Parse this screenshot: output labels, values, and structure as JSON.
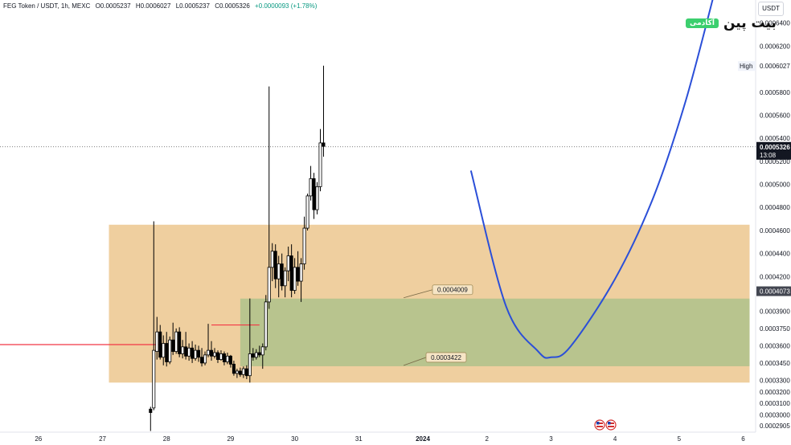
{
  "header": {
    "symbol": "FEG Token / USDT, 1h, MEXC",
    "open": "O0.0005237",
    "high": "H0.0006027",
    "low": "L0.0005237",
    "close": "C0.0005326",
    "change": "+0.0000093 (+1.78%)"
  },
  "brand": {
    "name": "بیت پین",
    "tag": "آکادمی"
  },
  "currency": "USDT",
  "colors": {
    "up": "#089981",
    "down": "#131722",
    "candle": "#000000",
    "supply_zone": "#efcf9f",
    "demand_zone": "#b8c48e",
    "projection": "#2b4fd8",
    "level_line": "#f23645",
    "label_box": "#f6e5c5",
    "label_border": "#a08c5a"
  },
  "chart_data": {
    "type": "candlestick",
    "title": "FEG Token / USDT, 1h, MEXC",
    "ylim": [
      0.000285,
      0.00066
    ],
    "x_ticks": [
      "26",
      "27",
      "28",
      "29",
      "30",
      "31",
      "2024",
      "2",
      "3",
      "4",
      "5",
      "6"
    ],
    "price_ticks": [
      "0.0006400",
      "0.0006200",
      "0.0005800",
      "0.0005600",
      "0.0005400",
      "0.0005200",
      "0.0005000",
      "0.0004800",
      "0.0004600",
      "0.0004400",
      "0.0004200",
      "0.0003900",
      "0.0003750",
      "0.0003600",
      "0.0003450",
      "0.0003300",
      "0.0003200",
      "0.0003100",
      "0.0003000",
      "0.0002905"
    ],
    "price_tick_values": [
      0.00064,
      0.00062,
      0.00058,
      0.00056,
      0.00054,
      0.00052,
      0.0005,
      0.00048,
      0.00046,
      0.00044,
      0.00042,
      0.00039,
      0.000375,
      0.00036,
      0.000345,
      0.00033,
      0.00032,
      0.00031,
      0.0003,
      0.0002905
    ],
    "markers": {
      "high": {
        "label": "High",
        "value": "0.0006027",
        "price": 0.0006027
      },
      "current": {
        "value": "0.0005326",
        "countdown": "13:08",
        "price": 0.0005326
      },
      "level": {
        "value": "0.0004073",
        "price": 0.0004073
      }
    },
    "zones": [
      {
        "name": "supply",
        "x0": 27.1,
        "x1": 37.1,
        "top": 0.000465,
        "bottom": 0.000328
      },
      {
        "name": "demand",
        "x0": 29.15,
        "x1": 37.1,
        "top": 0.0004009,
        "bottom": 0.0003422
      }
    ],
    "annotations": [
      {
        "text": "0.0004009",
        "price": 0.0004009,
        "day": 31.7,
        "label_day": 32.15
      },
      {
        "text": "0.0003422",
        "price": 0.0003422,
        "day": 31.7,
        "label_day": 32.05
      }
    ],
    "lines": [
      {
        "name": "support",
        "price": 0.000361,
        "x0": 25.4,
        "x1": 27.95
      },
      {
        "name": "range-high",
        "price": 0.000378,
        "x0": 28.7,
        "x1": 29.45
      }
    ],
    "projection": {
      "points": [
        [
          32.75,
          0.000512
        ],
        [
          33.3,
          0.000394
        ],
        [
          33.8,
          0.000355
        ],
        [
          34.0,
          0.00035
        ],
        [
          34.3,
          0.000359
        ],
        [
          35.0,
          0.000418
        ],
        [
          35.6,
          0.000489
        ],
        [
          36.1,
          0.000572
        ],
        [
          36.55,
          0.000666
        ]
      ]
    },
    "candles": [
      {
        "t": 27.75,
        "o": 0.000305,
        "h": 0.000307,
        "l": 0.000286,
        "c": 0.000302
      },
      {
        "t": 27.8,
        "o": 0.000306,
        "h": 0.000468,
        "l": 0.000304,
        "c": 0.000356
      },
      {
        "t": 27.85,
        "o": 0.000355,
        "h": 0.000385,
        "l": 0.000348,
        "c": 0.000372
      },
      {
        "t": 27.9,
        "o": 0.000372,
        "h": 0.000378,
        "l": 0.000348,
        "c": 0.00035
      },
      {
        "t": 27.95,
        "o": 0.00035,
        "h": 0.000369,
        "l": 0.000343,
        "c": 0.000362
      },
      {
        "t": 28.0,
        "o": 0.000362,
        "h": 0.000372,
        "l": 0.000342,
        "c": 0.000346
      },
      {
        "t": 28.05,
        "o": 0.000346,
        "h": 0.000368,
        "l": 0.000344,
        "c": 0.000365
      },
      {
        "t": 28.1,
        "o": 0.000365,
        "h": 0.00038,
        "l": 0.000352,
        "c": 0.000355
      },
      {
        "t": 28.15,
        "o": 0.000355,
        "h": 0.000375,
        "l": 0.000353,
        "c": 0.000372
      },
      {
        "t": 28.2,
        "o": 0.000372,
        "h": 0.000376,
        "l": 0.00035,
        "c": 0.000353
      },
      {
        "t": 28.25,
        "o": 0.000353,
        "h": 0.000365,
        "l": 0.000349,
        "c": 0.000359
      },
      {
        "t": 28.3,
        "o": 0.000359,
        "h": 0.000372,
        "l": 0.000348,
        "c": 0.000351
      },
      {
        "t": 28.35,
        "o": 0.000351,
        "h": 0.000362,
        "l": 0.000347,
        "c": 0.000358
      },
      {
        "t": 28.4,
        "o": 0.000358,
        "h": 0.000364,
        "l": 0.000345,
        "c": 0.000349
      },
      {
        "t": 28.45,
        "o": 0.000349,
        "h": 0.000361,
        "l": 0.000347,
        "c": 0.000356
      },
      {
        "t": 28.5,
        "o": 0.000356,
        "h": 0.00036,
        "l": 0.000346,
        "c": 0.00035
      },
      {
        "t": 28.55,
        "o": 0.00035,
        "h": 0.000358,
        "l": 0.000342,
        "c": 0.000345
      },
      {
        "t": 28.6,
        "o": 0.000345,
        "h": 0.000355,
        "l": 0.000343,
        "c": 0.000352
      },
      {
        "t": 28.65,
        "o": 0.000352,
        "h": 0.000379,
        "l": 0.00035,
        "c": 0.000356
      },
      {
        "t": 28.7,
        "o": 0.000356,
        "h": 0.000364,
        "l": 0.000347,
        "c": 0.000351
      },
      {
        "t": 28.75,
        "o": 0.000351,
        "h": 0.000358,
        "l": 0.000349,
        "c": 0.000354
      },
      {
        "t": 28.8,
        "o": 0.000354,
        "h": 0.000356,
        "l": 0.000345,
        "c": 0.000348
      },
      {
        "t": 28.85,
        "o": 0.000348,
        "h": 0.000356,
        "l": 0.000347,
        "c": 0.000353
      },
      {
        "t": 28.9,
        "o": 0.000353,
        "h": 0.000355,
        "l": 0.000343,
        "c": 0.000346
      },
      {
        "t": 28.95,
        "o": 0.000346,
        "h": 0.000354,
        "l": 0.000344,
        "c": 0.000351
      },
      {
        "t": 29.0,
        "o": 0.000351,
        "h": 0.000352,
        "l": 0.000341,
        "c": 0.000344
      },
      {
        "t": 29.05,
        "o": 0.000344,
        "h": 0.000347,
        "l": 0.000334,
        "c": 0.000336
      },
      {
        "t": 29.1,
        "o": 0.000336,
        "h": 0.00034,
        "l": 0.000332,
        "c": 0.000338
      },
      {
        "t": 29.15,
        "o": 0.000338,
        "h": 0.000341,
        "l": 0.000333,
        "c": 0.000335
      },
      {
        "t": 29.2,
        "o": 0.000335,
        "h": 0.000342,
        "l": 0.000332,
        "c": 0.00034
      },
      {
        "t": 29.25,
        "o": 0.00034,
        "h": 0.000343,
        "l": 0.000331,
        "c": 0.000334
      },
      {
        "t": 29.3,
        "o": 0.000334,
        "h": 0.000401,
        "l": 0.000328,
        "c": 0.000353
      },
      {
        "t": 29.35,
        "o": 0.000353,
        "h": 0.000358,
        "l": 0.000347,
        "c": 0.00035
      },
      {
        "t": 29.4,
        "o": 0.00035,
        "h": 0.000357,
        "l": 0.000348,
        "c": 0.000354
      },
      {
        "t": 29.45,
        "o": 0.000354,
        "h": 0.00036,
        "l": 0.00035,
        "c": 0.000352
      },
      {
        "t": 29.5,
        "o": 0.000352,
        "h": 0.000362,
        "l": 0.00034,
        "c": 0.000359
      },
      {
        "t": 29.55,
        "o": 0.000359,
        "h": 0.000404,
        "l": 0.000356,
        "c": 0.000398
      },
      {
        "t": 29.6,
        "o": 0.000398,
        "h": 0.000585,
        "l": 0.000392,
        "c": 0.000428
      },
      {
        "t": 29.65,
        "o": 0.000428,
        "h": 0.000449,
        "l": 0.000416,
        "c": 0.000442
      },
      {
        "t": 29.7,
        "o": 0.000442,
        "h": 0.000448,
        "l": 0.00041,
        "c": 0.000418
      },
      {
        "t": 29.75,
        "o": 0.000418,
        "h": 0.000438,
        "l": 0.000402,
        "c": 0.000431
      },
      {
        "t": 29.8,
        "o": 0.000431,
        "h": 0.00044,
        "l": 0.000408,
        "c": 0.000412
      },
      {
        "t": 29.85,
        "o": 0.000412,
        "h": 0.000428,
        "l": 0.000402,
        "c": 0.000425
      },
      {
        "t": 29.9,
        "o": 0.000425,
        "h": 0.000446,
        "l": 0.000416,
        "c": 0.000438
      },
      {
        "t": 29.95,
        "o": 0.000438,
        "h": 0.000448,
        "l": 0.000402,
        "c": 0.000408
      },
      {
        "t": 30.0,
        "o": 0.000408,
        "h": 0.000436,
        "l": 0.000405,
        "c": 0.000428
      },
      {
        "t": 30.05,
        "o": 0.000428,
        "h": 0.000442,
        "l": 0.000412,
        "c": 0.000416
      },
      {
        "t": 30.1,
        "o": 0.000416,
        "h": 0.000436,
        "l": 0.000398,
        "c": 0.000431
      },
      {
        "t": 30.15,
        "o": 0.000431,
        "h": 0.000472,
        "l": 0.000426,
        "c": 0.000462
      },
      {
        "t": 30.2,
        "o": 0.000462,
        "h": 0.000492,
        "l": 0.00046,
        "c": 0.00049
      },
      {
        "t": 30.25,
        "o": 0.00049,
        "h": 0.000516,
        "l": 0.000486,
        "c": 0.000505
      },
      {
        "t": 30.3,
        "o": 0.000505,
        "h": 0.00051,
        "l": 0.00047,
        "c": 0.000478
      },
      {
        "t": 30.35,
        "o": 0.000478,
        "h": 0.000502,
        "l": 0.000474,
        "c": 0.000498
      },
      {
        "t": 30.4,
        "o": 0.000498,
        "h": 0.000548,
        "l": 0.000494,
        "c": 0.000536
      },
      {
        "t": 30.45,
        "o": 0.000536,
        "h": 0.000603,
        "l": 0.000524,
        "c": 0.000533
      }
    ]
  }
}
